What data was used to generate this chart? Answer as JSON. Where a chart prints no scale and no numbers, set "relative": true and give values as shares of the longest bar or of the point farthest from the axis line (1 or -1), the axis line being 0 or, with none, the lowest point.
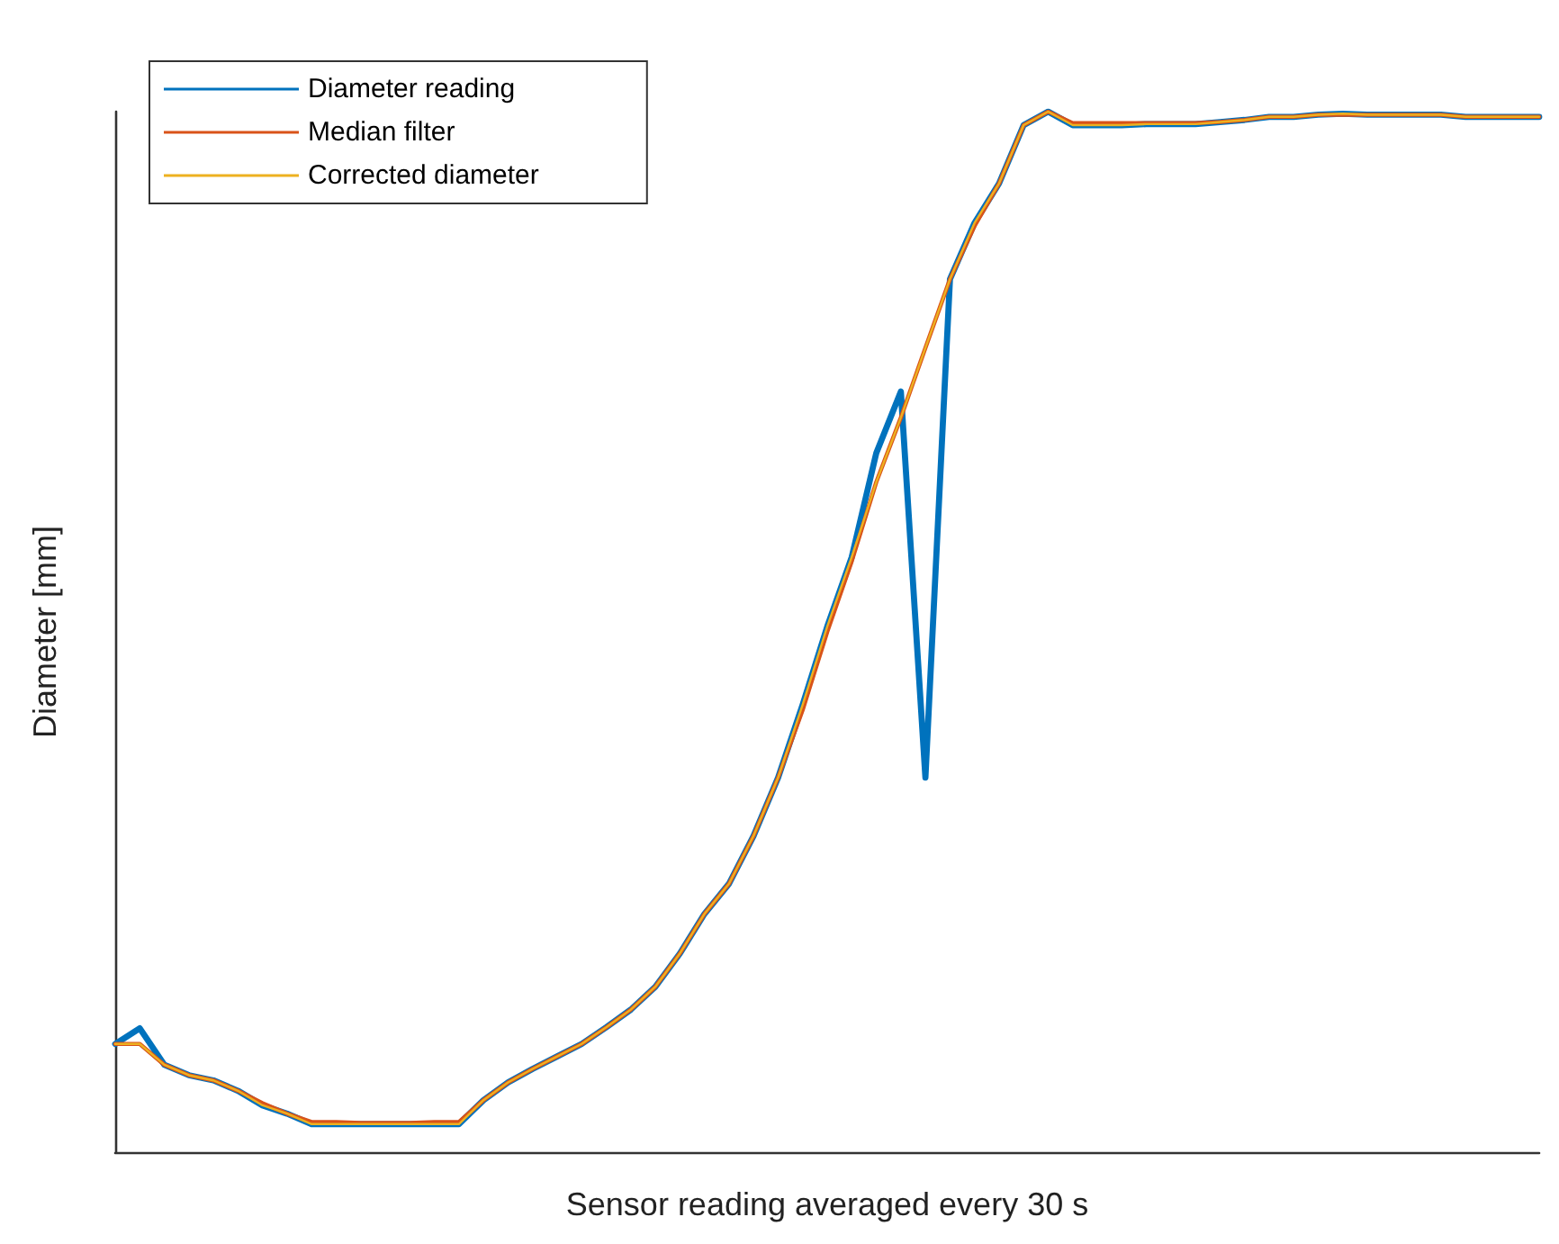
{
  "chart_data": {
    "type": "line",
    "relative": true,
    "xlabel": "Sensor reading averaged every 30 s",
    "ylabel": "Diameter [mm]",
    "categories": [
      null,
      null,
      null,
      null,
      null,
      null,
      null,
      null,
      null,
      null,
      null,
      null,
      null,
      null,
      null,
      null,
      null,
      null,
      null,
      null,
      null,
      null,
      null,
      null,
      null,
      null,
      null,
      null,
      null,
      null,
      null,
      null,
      null,
      null,
      null,
      null,
      null,
      null,
      null,
      null,
      null,
      null,
      null,
      null,
      null,
      null,
      null,
      null,
      null,
      null,
      null,
      null,
      null,
      null,
      null,
      null,
      null,
      null,
      null
    ],
    "series": [
      {
        "name": "Diameter reading",
        "color": "#0072bd",
        "values": [
          0.104,
          0.119,
          0.084,
          0.074,
          0.069,
          0.059,
          0.045,
          0.037,
          0.027,
          0.027,
          0.027,
          0.027,
          0.027,
          0.027,
          0.027,
          0.05,
          0.067,
          0.08,
          0.092,
          0.104,
          0.12,
          0.137,
          0.159,
          0.191,
          0.229,
          0.258,
          0.304,
          0.36,
          0.43,
          0.505,
          0.572,
          0.672,
          0.731,
          0.36,
          0.839,
          0.893,
          0.931,
          0.987,
          1,
          0.987,
          0.987,
          0.987,
          0.988,
          0.988,
          0.988,
          0.99,
          0.992,
          0.995,
          0.995,
          0.997,
          0.998,
          0.997,
          0.997,
          0.997,
          0.997,
          0.995,
          0.995,
          0.995,
          0.995
        ]
      },
      {
        "name": "Median filter",
        "color": "#d95319",
        "values": [
          0.104,
          0.104,
          0.084,
          0.074,
          0.069,
          0.059,
          0.047,
          0.037,
          0.029,
          0.029,
          0.028,
          0.028,
          0.028,
          0.029,
          0.029,
          0.05,
          0.067,
          0.08,
          0.092,
          0.104,
          0.12,
          0.137,
          0.159,
          0.191,
          0.229,
          0.258,
          0.304,
          0.36,
          0.425,
          0.5,
          0.568,
          0.644,
          0.706,
          0.773,
          0.839,
          0.89,
          0.931,
          0.987,
          1,
          0.989,
          0.989,
          0.989,
          0.989,
          0.989,
          0.989,
          0.99,
          0.992,
          0.995,
          0.995,
          0.997,
          0.997,
          0.997,
          0.997,
          0.997,
          0.997,
          0.995,
          0.995,
          0.995,
          0.995
        ]
      },
      {
        "name": "Corrected diameter",
        "color": "#edb120",
        "values": [
          0.104,
          0.104,
          0.084,
          0.074,
          0.069,
          0.059,
          0.045,
          0.037,
          0.027,
          0.027,
          0.027,
          0.027,
          0.027,
          0.027,
          0.027,
          0.05,
          0.067,
          0.08,
          0.092,
          0.104,
          0.12,
          0.137,
          0.159,
          0.191,
          0.229,
          0.258,
          0.304,
          0.36,
          0.43,
          0.505,
          0.572,
          0.644,
          0.706,
          0.773,
          0.839,
          0.893,
          0.931,
          0.987,
          1,
          0.987,
          0.987,
          0.987,
          0.988,
          0.988,
          0.988,
          0.99,
          0.992,
          0.995,
          0.995,
          0.997,
          0.998,
          0.997,
          0.997,
          0.997,
          0.997,
          0.995,
          0.995,
          0.995,
          0.995
        ]
      }
    ],
    "legend": "top left",
    "grid": false,
    "marker": "none",
    "line_style": "solid"
  }
}
